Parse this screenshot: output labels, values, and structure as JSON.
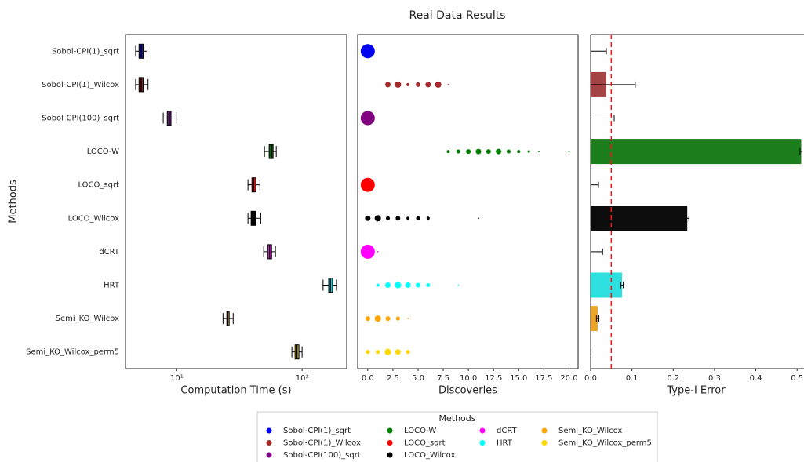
{
  "title": "Real Data Results",
  "ylabel": "Methods",
  "legend": {
    "title": "Methods",
    "entries": [
      {
        "name": "Sobol-CPI(1)_sqrt",
        "color": "#0000ee"
      },
      {
        "name": "Sobol-CPI(1)_Wilcox",
        "color": "#a52a2a"
      },
      {
        "name": "Sobol-CPI(100)_sqrt",
        "color": "#800080"
      },
      {
        "name": "LOCO-W",
        "color": "#008000"
      },
      {
        "name": "LOCO_sqrt",
        "color": "#ff0000"
      },
      {
        "name": "LOCO_Wilcox",
        "color": "#000000"
      },
      {
        "name": "dCRT",
        "color": "#ff00ff"
      },
      {
        "name": "HRT",
        "color": "#00ffff"
      },
      {
        "name": "Semi_KO_Wilcox",
        "color": "#ffa500"
      },
      {
        "name": "Semi_KO_Wilcox_perm5",
        "color": "#ffd700"
      }
    ]
  },
  "chart_data": [
    {
      "type": "boxplot",
      "xlabel": "Computation Time (s)",
      "xscale": "log",
      "categories": [
        "Sobol-CPI(1)_sqrt",
        "Sobol-CPI(1)_Wilcox",
        "Sobol-CPI(100)_sqrt",
        "LOCO-W",
        "LOCO_sqrt",
        "LOCO_Wilcox",
        "dCRT",
        "HRT",
        "Semi_KO_Wilcox",
        "Semi_KO_Wilcox_perm5"
      ],
      "colors": [
        "#1a1a8c",
        "#7a2a2a",
        "#6a1a7a",
        "#0a6a0a",
        "#c01818",
        "#000000",
        "#d030d0",
        "#20c8d0",
        "#d08a10",
        "#c0b030"
      ],
      "xlim": [
        3.9,
        227
      ],
      "xticks": [
        {
          "value": 10,
          "label": "10¹"
        },
        {
          "value": 100,
          "label": "10²"
        }
      ],
      "boxes": [
        {
          "whislo": 4.7,
          "q1": 5.0,
          "med": 5.2,
          "q3": 5.4,
          "whishi": 5.8
        },
        {
          "whislo": 4.7,
          "q1": 5.0,
          "med": 5.2,
          "q3": 5.4,
          "whishi": 5.9
        },
        {
          "whislo": 7.8,
          "q1": 8.4,
          "med": 8.7,
          "q3": 9.0,
          "whishi": 9.9
        },
        {
          "whislo": 50.1,
          "q1": 54.6,
          "med": 57,
          "q3": 58.7,
          "whishi": 62.2
        },
        {
          "whislo": 37,
          "q1": 39.8,
          "med": 41,
          "q3": 42.8,
          "whishi": 46.1
        },
        {
          "whislo": 37,
          "q1": 39.2,
          "med": 40,
          "q3": 42.8,
          "whishi": 46.8
        },
        {
          "whislo": 49.4,
          "q1": 53.1,
          "med": 55,
          "q3": 57.1,
          "whishi": 61.3
        },
        {
          "whislo": 147,
          "q1": 163,
          "med": 168,
          "q3": 175,
          "whishi": 188
        },
        {
          "whislo": 23.4,
          "q1": 25.1,
          "med": 25.5,
          "q3": 26.2,
          "whishi": 28.2
        },
        {
          "whislo": 82.9,
          "q1": 87.9,
          "med": 91,
          "q3": 94.4,
          "whishi": 100
        }
      ]
    },
    {
      "type": "scatter",
      "xlabel": "Discoveries",
      "xlim": [
        -1,
        20.9
      ],
      "xticks": [
        {
          "value": 0,
          "label": "0.0"
        },
        2.5,
        {
          "value": 5,
          "label": "5.0"
        },
        7.5,
        {
          "value": 10,
          "label": "10.0"
        },
        12.5,
        {
          "value": 15,
          "label": "15.0"
        },
        17.5,
        {
          "value": 20,
          "label": "20.0"
        }
      ],
      "series": [
        {
          "color": "#0000ee",
          "x": [
            0
          ],
          "sizes": [
            1.0
          ]
        },
        {
          "color": "#a52a2a",
          "x": [
            2,
            3,
            4,
            5,
            6,
            7,
            8
          ],
          "sizes": [
            0.15,
            0.2,
            0.05,
            0.11,
            0.15,
            0.2,
            0.01
          ]
        },
        {
          "color": "#800080",
          "x": [
            0
          ],
          "sizes": [
            1.0
          ]
        },
        {
          "color": "#008000",
          "x": [
            8,
            9,
            10,
            11,
            12,
            13,
            14,
            15,
            16,
            17,
            20
          ],
          "sizes": [
            0.05,
            0.08,
            0.11,
            0.15,
            0.11,
            0.15,
            0.08,
            0.05,
            0.03,
            0.01,
            0.01
          ]
        },
        {
          "color": "#ff0000",
          "x": [
            0
          ],
          "sizes": [
            1.0
          ]
        },
        {
          "color": "#000000",
          "x": [
            0,
            1,
            2,
            3,
            4,
            5,
            6,
            11
          ],
          "sizes": [
            0.15,
            0.2,
            0.08,
            0.11,
            0.05,
            0.08,
            0.05,
            0.01
          ]
        },
        {
          "color": "#ff00ff",
          "x": [
            0,
            1
          ],
          "sizes": [
            1.0,
            0.01
          ]
        },
        {
          "color": "#00ffff",
          "x": [
            1,
            2,
            3,
            4,
            5,
            6,
            9
          ],
          "sizes": [
            0.05,
            0.15,
            0.2,
            0.15,
            0.11,
            0.08,
            0.01
          ]
        },
        {
          "color": "#ffa500",
          "x": [
            0,
            1,
            2,
            3,
            4
          ],
          "sizes": [
            0.11,
            0.2,
            0.11,
            0.08,
            0.01
          ]
        },
        {
          "color": "#ffd700",
          "x": [
            0,
            1,
            2,
            3,
            4
          ],
          "sizes": [
            0.08,
            0.08,
            0.2,
            0.15,
            0.08
          ]
        }
      ]
    },
    {
      "type": "hbar",
      "xlabel": "Type-I Error",
      "xlim": [
        0,
        0.511
      ],
      "xticks": [
        {
          "value": 0,
          "label": "0.0"
        },
        0.1,
        0.2,
        0.3,
        0.4,
        0.5
      ],
      "colors": [
        "#0000ee",
        "#a03a3a",
        "#800080",
        "#117711",
        "#ff0000",
        "#000000",
        "#ff00ff",
        "#22dddd",
        "#e8a020",
        "#ffd700"
      ],
      "values": [
        0,
        0.038,
        0,
        0.51,
        0,
        0.234,
        0,
        0.076,
        0.017,
        0
      ],
      "errors": [
        0.038,
        0.07,
        0.057,
        0.003,
        0.019,
        0.004,
        0.029,
        0.003,
        0.003,
        0.001
      ],
      "reference_line": 0.05,
      "reference_color": "#e02020"
    }
  ]
}
